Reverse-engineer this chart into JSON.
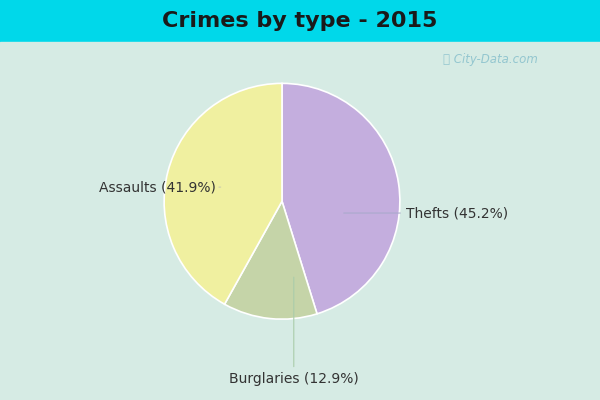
{
  "title": "Crimes by type - 2015",
  "slices": [
    {
      "label": "Thefts (45.2%)",
      "value": 45.2,
      "color": "#c4aede"
    },
    {
      "label": "Burglaries (12.9%)",
      "value": 12.9,
      "color": "#c5d4a8"
    },
    {
      "label": "Assaults (41.9%)",
      "value": 41.9,
      "color": "#f0f0a0"
    }
  ],
  "background_top": "#00d8ea",
  "background_main_top": "#d8eee8",
  "background_main_bottom": "#d0e8e0",
  "title_fontsize": 16,
  "label_fontsize": 10,
  "watermark": "ⓘ City-Data.com",
  "startangle": 90
}
